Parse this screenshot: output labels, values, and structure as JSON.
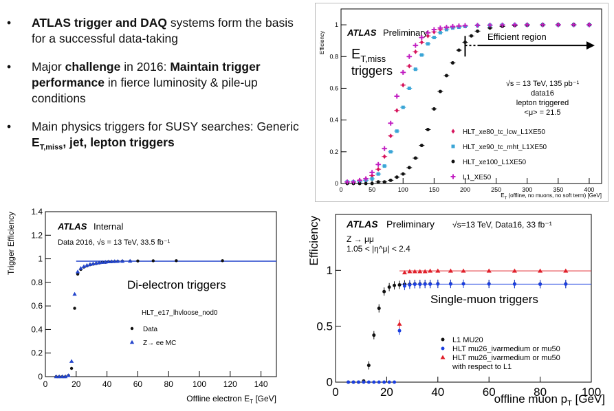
{
  "bullets": [
    {
      "bullet": "•",
      "parts": [
        {
          "t": "ATLAS trigger and DAQ",
          "b": true
        },
        {
          "t": " systems form the basis for a successful data-taking",
          "b": false
        }
      ]
    },
    {
      "bullet": "•",
      "parts": [
        {
          "t": "Major ",
          "b": false
        },
        {
          "t": "challenge",
          "b": true
        },
        {
          "t": " in 2016: ",
          "b": false
        },
        {
          "t": "Maintain trigger performance",
          "b": true
        },
        {
          "t": " in fierce luminosity & pile-up conditions",
          "b": false
        }
      ]
    },
    {
      "bullet": "•",
      "parts": [
        {
          "t": "Main physics triggers for SUSY searches: Generic ",
          "b": false
        },
        {
          "t": "E",
          "b": true
        },
        {
          "t": "T,miss",
          "b": true,
          "sub": true
        },
        {
          "t": ", jet, lepton triggers",
          "b": true
        }
      ]
    }
  ],
  "chart_data": [
    {
      "type": "scatter",
      "id": "met",
      "ylabel": "Efficiency",
      "xlabel": "E_T^miss (offline, no muons, no soft term) [GeV]",
      "xlim": [
        0,
        420
      ],
      "ylim": [
        0,
        1.1
      ],
      "xticks": [
        0,
        50,
        100,
        150,
        200,
        250,
        300,
        350,
        400
      ],
      "yticks": [
        0,
        0.2,
        0.4,
        0.6,
        0.8,
        1
      ],
      "atlas": "ATLAS",
      "atlas_status": "Preliminary",
      "big_label": "E",
      "big_label_sub": "T,miss",
      "big_label_2": "triggers",
      "annotation": "Efficient region",
      "info": [
        "√s = 13 TeV, 135 pb⁻¹",
        "data16",
        "lepton triggered",
        "<μ> = 21.5"
      ],
      "series": [
        {
          "name": "HLT_xe80_tc_lcw_L1XE50",
          "color": "#d6145c",
          "marker": "diamond",
          "x": [
            10,
            20,
            30,
            40,
            50,
            60,
            70,
            80,
            90,
            100,
            110,
            120,
            130,
            140,
            150,
            160,
            170,
            180,
            190,
            200,
            220,
            240,
            260,
            280,
            300,
            325,
            350,
            375,
            400
          ],
          "y": [
            0.01,
            0.01,
            0.02,
            0.03,
            0.05,
            0.09,
            0.17,
            0.3,
            0.46,
            0.62,
            0.74,
            0.83,
            0.89,
            0.93,
            0.955,
            0.97,
            0.98,
            0.985,
            0.99,
            0.992,
            0.995,
            0.997,
            0.998,
            0.999,
            0.999,
            1.0,
            1.0,
            1.0,
            1.0
          ]
        },
        {
          "name": "HLT_xe90_tc_mht_L1XE50",
          "color": "#3aa5d6",
          "marker": "square",
          "x": [
            10,
            20,
            30,
            40,
            50,
            60,
            70,
            80,
            90,
            100,
            110,
            120,
            130,
            140,
            150,
            160,
            170,
            180,
            190,
            200,
            220,
            240,
            260,
            280,
            300,
            325,
            350,
            375,
            400
          ],
          "y": [
            0.01,
            0.01,
            0.01,
            0.02,
            0.03,
            0.06,
            0.11,
            0.2,
            0.33,
            0.48,
            0.6,
            0.72,
            0.81,
            0.88,
            0.92,
            0.95,
            0.97,
            0.98,
            0.985,
            0.99,
            0.995,
            0.997,
            0.998,
            0.999,
            0.999,
            1.0,
            1.0,
            1.0,
            1.0
          ]
        },
        {
          "name": "HLT_xe100_L1XE50",
          "color": "#111111",
          "marker": "circle",
          "x": [
            10,
            20,
            30,
            40,
            50,
            60,
            70,
            80,
            90,
            100,
            110,
            120,
            130,
            140,
            150,
            160,
            170,
            180,
            190,
            200,
            210,
            220,
            240,
            260,
            280,
            300,
            325,
            350,
            375,
            400
          ],
          "y": [
            0.0,
            0.0,
            0.0,
            0.0,
            0.0,
            0.01,
            0.01,
            0.02,
            0.04,
            0.06,
            0.1,
            0.16,
            0.24,
            0.34,
            0.47,
            0.58,
            0.68,
            0.76,
            0.84,
            0.89,
            0.93,
            0.96,
            0.98,
            0.99,
            0.995,
            0.998,
            0.999,
            1.0,
            1.0,
            1.0
          ]
        },
        {
          "name": "L1_XE50",
          "color": "#c21fc2",
          "marker": "plus",
          "x": [
            10,
            20,
            30,
            40,
            50,
            60,
            70,
            80,
            90,
            100,
            110,
            120,
            130,
            140,
            150,
            160,
            170,
            180,
            190,
            200,
            220,
            240,
            260,
            280,
            300,
            325,
            350,
            375,
            400
          ],
          "y": [
            0.01,
            0.01,
            0.02,
            0.03,
            0.07,
            0.12,
            0.22,
            0.38,
            0.55,
            0.7,
            0.8,
            0.87,
            0.92,
            0.95,
            0.97,
            0.98,
            0.985,
            0.99,
            0.993,
            0.995,
            0.997,
            0.998,
            0.999,
            1.0,
            1.0,
            1.0,
            1.0,
            1.0,
            1.0
          ]
        }
      ]
    },
    {
      "type": "scatter",
      "id": "ele",
      "ylabel": "Trigger Efficiency",
      "xlabel": "Offline electron E_T [GeV]",
      "xlim": [
        0,
        150
      ],
      "ylim": [
        0,
        1.4
      ],
      "xticks": [
        0,
        20,
        40,
        60,
        80,
        100,
        120,
        140
      ],
      "yticks": [
        0,
        0.2,
        0.4,
        0.6,
        0.8,
        1,
        1.2,
        1.4
      ],
      "atlas": "ATLAS",
      "atlas_status": "Internal",
      "info": [
        "Data 2016, √s = 13 TeV, 33.5 fb⁻¹"
      ],
      "big_label": "Di-electron triggers",
      "legend_title": "HLT_e17_lhvloose_nod0",
      "series": [
        {
          "name": "Data",
          "color": "#111111",
          "marker": "circle",
          "x": [
            7,
            9,
            11,
            13,
            15,
            17,
            19,
            21,
            23,
            25,
            27,
            29,
            31,
            33,
            35,
            37,
            39,
            41,
            43,
            45,
            47,
            50,
            55,
            60,
            70,
            85,
            115
          ],
          "y": [
            0.0,
            0.0,
            0.0,
            0.0,
            0.01,
            0.07,
            0.58,
            0.87,
            0.91,
            0.93,
            0.94,
            0.95,
            0.955,
            0.96,
            0.965,
            0.97,
            0.97,
            0.975,
            0.975,
            0.977,
            0.978,
            0.98,
            0.98,
            0.982,
            0.983,
            0.984,
            0.984
          ]
        },
        {
          "name": "Z→ ee MC",
          "color": "#2244cc",
          "marker": "triangle",
          "x": [
            7,
            9,
            11,
            13,
            15,
            17,
            19,
            21,
            23,
            25,
            27,
            29,
            31,
            33,
            35,
            37,
            39,
            41,
            43,
            45,
            47,
            50,
            55
          ],
          "y": [
            0.0,
            0.0,
            0.0,
            0.0,
            0.01,
            0.13,
            0.7,
            0.89,
            0.92,
            0.935,
            0.945,
            0.953,
            0.958,
            0.963,
            0.967,
            0.97,
            0.972,
            0.975,
            0.977,
            0.978,
            0.979,
            0.98,
            0.981
          ]
        }
      ]
    },
    {
      "type": "scatter",
      "id": "muon",
      "ylabel": "Efficiency",
      "xlabel": "offline muon p_T [GeV]",
      "xlim": [
        0,
        100
      ],
      "ylim": [
        0,
        1.5
      ],
      "xticks": [
        0,
        20,
        40,
        60,
        80,
        100
      ],
      "yticks": [
        0,
        0.5,
        1
      ],
      "atlas": "ATLAS",
      "atlas_status": "Preliminary",
      "info_inline": "√s=13 TeV, Data16, 33 fb⁻¹",
      "info": [
        "Z → μμ",
        "1.05 < |η^μ| < 2.4"
      ],
      "big_label": "Single-muon triggers",
      "series": [
        {
          "name": "L1 MU20",
          "color": "#111111",
          "marker": "circle",
          "x": [
            5,
            7,
            9,
            11,
            13,
            15,
            17,
            19,
            21,
            23,
            25,
            27,
            29,
            31,
            33,
            35,
            37,
            40,
            45,
            50,
            60,
            70,
            80,
            90
          ],
          "y": [
            0.0,
            0.0,
            0.0,
            0.01,
            0.15,
            0.42,
            0.66,
            0.81,
            0.85,
            0.865,
            0.87,
            0.875,
            0.875,
            0.878,
            0.878,
            0.879,
            0.879,
            0.88,
            0.88,
            0.88,
            0.879,
            0.878,
            0.877,
            0.878
          ]
        },
        {
          "name": "HLT mu26_ivarmedium or mu50",
          "color": "#1b3fe0",
          "marker": "circle",
          "x": [
            5,
            7,
            9,
            11,
            13,
            15,
            17,
            19,
            21,
            23,
            25,
            27,
            29,
            31,
            33,
            35,
            37,
            40,
            45,
            50,
            60,
            70,
            80,
            90
          ],
          "y": [
            0.0,
            0.0,
            0.0,
            0.0,
            0.0,
            0.0,
            0.0,
            0.0,
            0.0,
            0.0,
            0.46,
            0.86,
            0.87,
            0.875,
            0.875,
            0.877,
            0.877,
            0.878,
            0.878,
            0.879,
            0.878,
            0.877,
            0.876,
            0.877
          ]
        },
        {
          "name": "HLT mu26_ivarmedium or mu50 with respect to L1",
          "color": "#e0202a",
          "marker": "triangle",
          "x": [
            25,
            27,
            29,
            31,
            33,
            35,
            37,
            40,
            45,
            50,
            60,
            70,
            80,
            90
          ],
          "y": [
            0.52,
            0.98,
            0.99,
            0.99,
            0.99,
            0.99,
            0.995,
            0.995,
            0.995,
            0.995,
            0.995,
            0.995,
            0.995,
            0.995
          ]
        }
      ]
    }
  ]
}
